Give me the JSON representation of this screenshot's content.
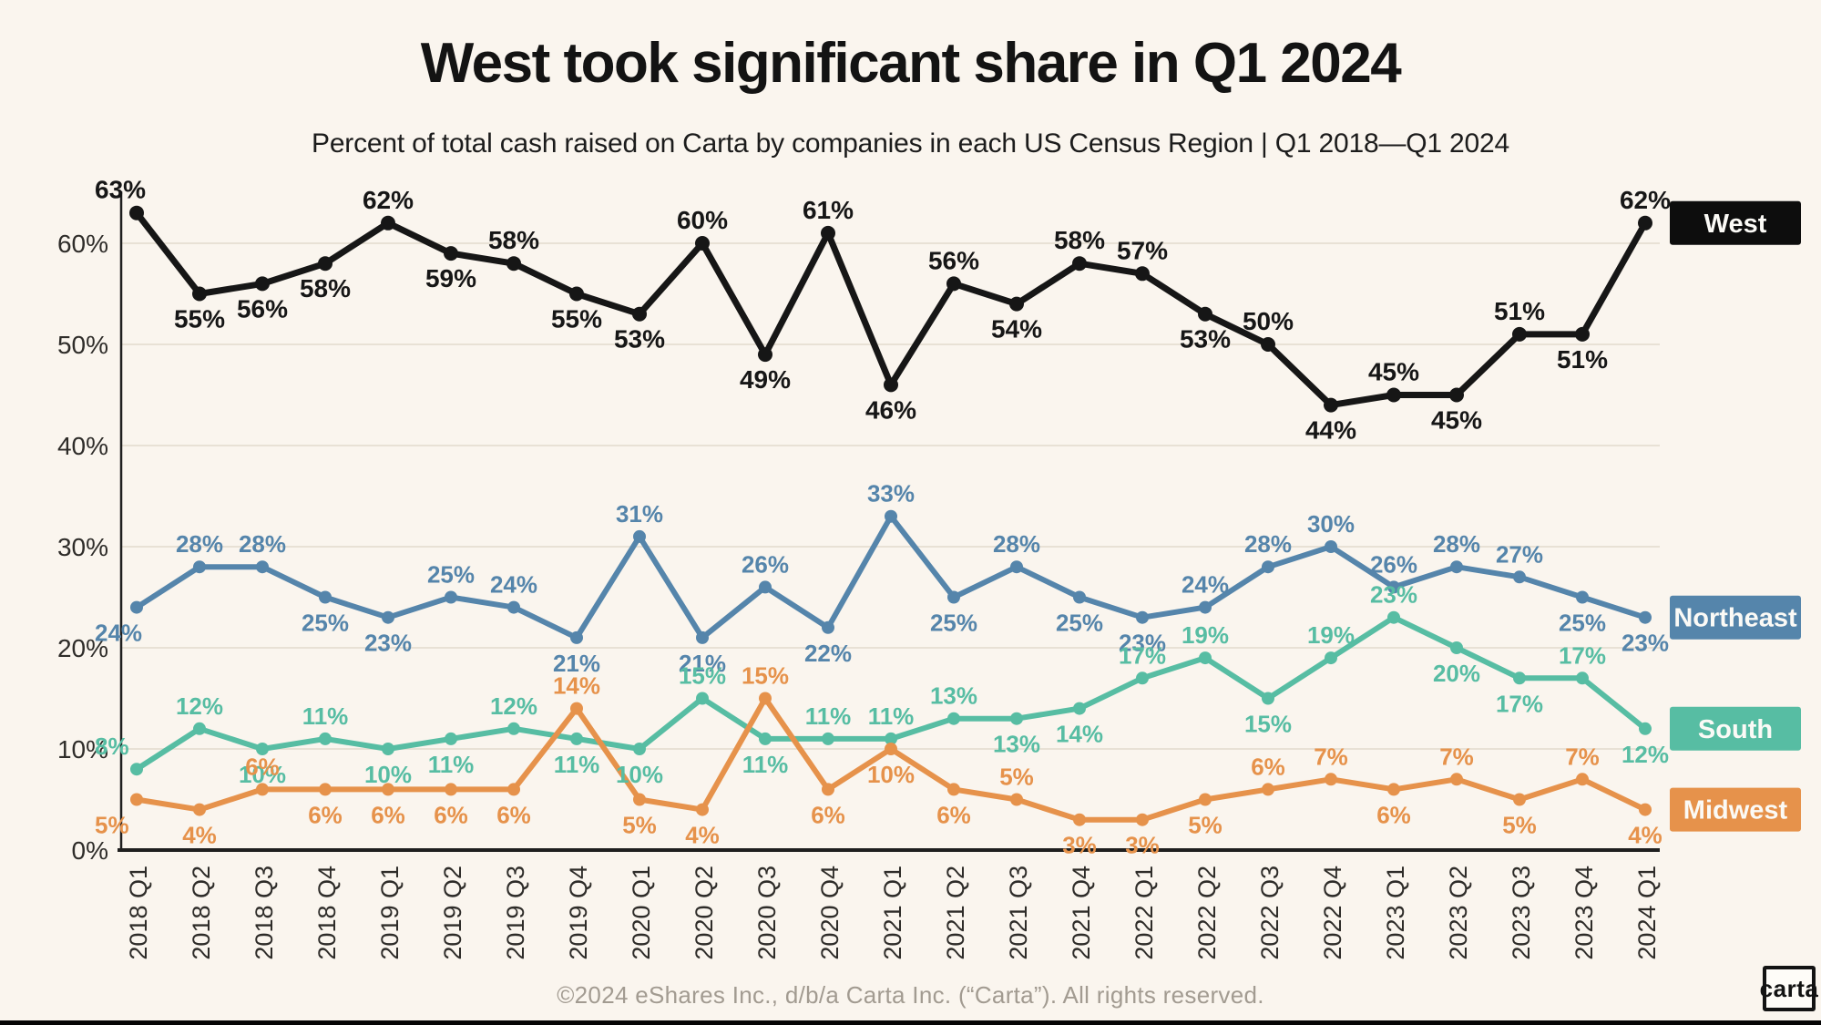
{
  "page": {
    "title": "West took significant share in Q1 2024",
    "subtitle": "Percent of total cash raised on Carta by companies in each US Census Region |  Q1 2018—Q1 2024",
    "footer": "©2024 eShares Inc., d/b/a Carta Inc. (“Carta”). All rights reserved.",
    "logo_text": "carta",
    "background_color": "#faf5ee"
  },
  "chart_data": {
    "type": "line",
    "title": "West took significant share in Q1 2024",
    "subtitle": "Percent of total cash raised on Carta by companies in each US Census Region | Q1 2018—Q1 2024",
    "x_categories": [
      "2018 Q1",
      "2018 Q2",
      "2018 Q3",
      "2018 Q4",
      "2019 Q1",
      "2019 Q2",
      "2019 Q3",
      "2019 Q4",
      "2020 Q1",
      "2020 Q2",
      "2020 Q3",
      "2020 Q4",
      "2021 Q1",
      "2021 Q2",
      "2021 Q3",
      "2021 Q4",
      "2022 Q1",
      "2022 Q2",
      "2022 Q3",
      "2022 Q4",
      "2023 Q1",
      "2023 Q2",
      "2023 Q3",
      "2023 Q4",
      "2024 Q1"
    ],
    "y_axis": {
      "ticks": [
        0,
        10,
        20,
        30,
        40,
        50,
        60
      ],
      "suffix": "%",
      "min": 0,
      "max": 65
    },
    "grid": true,
    "legend_position": "right",
    "style": {
      "grid_color": "#e8e1d5",
      "axis_color": "#1f1f1f",
      "tick_color": "#2e2c29",
      "legend_text_color": "#fbfaf6"
    },
    "series": [
      {
        "name": "West",
        "color": "#161616",
        "values": [
          63,
          55,
          56,
          58,
          62,
          59,
          58,
          55,
          53,
          60,
          49,
          61,
          46,
          56,
          54,
          58,
          57,
          53,
          50,
          44,
          45,
          45,
          51,
          51,
          62
        ],
        "label_above": [
          1,
          0,
          0,
          0,
          1,
          0,
          1,
          0,
          0,
          1,
          0,
          1,
          0,
          1,
          0,
          1,
          1,
          0,
          1,
          0,
          1,
          0,
          1,
          0,
          1
        ]
      },
      {
        "name": "Northeast",
        "color": "#5585ab",
        "values": [
          24,
          28,
          28,
          25,
          23,
          25,
          24,
          21,
          31,
          21,
          26,
          22,
          33,
          25,
          28,
          25,
          23,
          24,
          28,
          30,
          26,
          28,
          27,
          25,
          23
        ],
        "label_above": [
          0,
          1,
          1,
          0,
          0,
          1,
          1,
          0,
          1,
          0,
          1,
          0,
          1,
          0,
          1,
          0,
          0,
          1,
          1,
          1,
          1,
          1,
          1,
          0,
          0
        ]
      },
      {
        "name": "South",
        "color": "#57bda3",
        "values": [
          8,
          12,
          10,
          11,
          10,
          11,
          12,
          11,
          10,
          15,
          11,
          11,
          11,
          13,
          13,
          14,
          17,
          19,
          15,
          19,
          23,
          20,
          17,
          17,
          12
        ],
        "label_above": [
          1,
          1,
          0,
          1,
          0,
          0,
          1,
          0,
          0,
          1,
          0,
          1,
          1,
          1,
          0,
          0,
          1,
          1,
          0,
          1,
          1,
          0,
          0,
          1,
          0
        ]
      },
      {
        "name": "Midwest",
        "color": "#e6924b",
        "values": [
          5,
          4,
          6,
          6,
          6,
          6,
          6,
          14,
          5,
          4,
          15,
          6,
          10,
          6,
          5,
          3,
          3,
          5,
          6,
          7,
          6,
          7,
          5,
          7,
          4
        ],
        "label_above": [
          0,
          0,
          1,
          0,
          0,
          0,
          0,
          1,
          0,
          0,
          1,
          0,
          0,
          0,
          1,
          0,
          0,
          0,
          1,
          1,
          0,
          1,
          0,
          1,
          0
        ]
      }
    ],
    "legend": [
      {
        "label": "West",
        "bg": "#0d0d0d"
      },
      {
        "label": "Northeast",
        "bg": "#5585ab"
      },
      {
        "label": "South",
        "bg": "#57bda3"
      },
      {
        "label": "Midwest",
        "bg": "#e6924b"
      }
    ]
  }
}
